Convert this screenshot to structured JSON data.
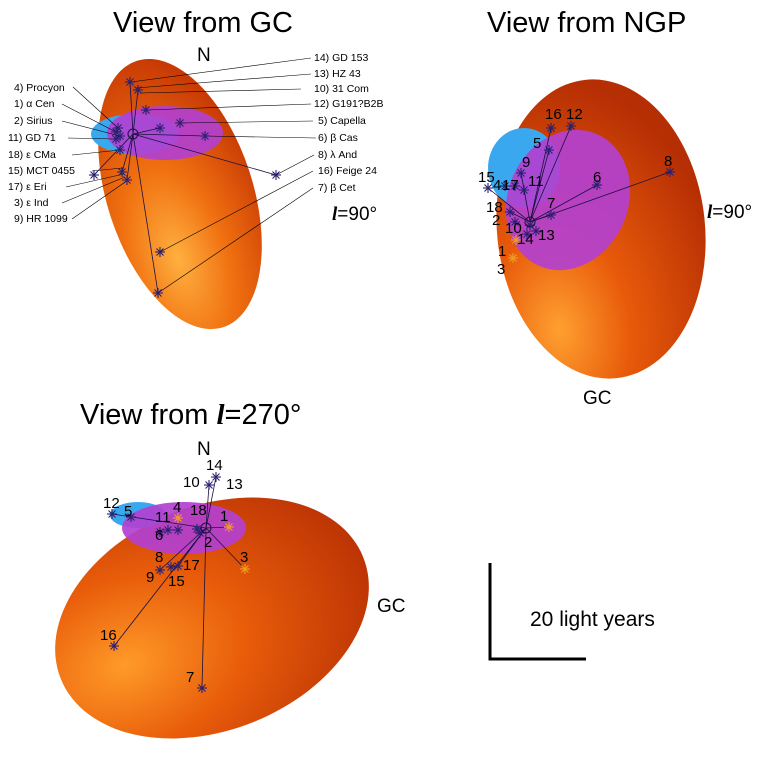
{
  "colors": {
    "bubble_dark": "#c23a05",
    "bubble_mid": "#e8600c",
    "bubble_light": "#ff9a2a",
    "cloud_blue": "#3aa8ee",
    "cloud_magenta": "#b340d0",
    "star_blue": "#2a2070",
    "star_orange": "#f0a020"
  },
  "icons": {
    "star_marker": "asterisk-star-icon",
    "sun_marker": "circle-sun-icon"
  },
  "panels": {
    "gc": {
      "title": "View from GC",
      "north": "N",
      "l_prefix": "l",
      "l_suffix": "=90°",
      "legend_left": [
        "4) Procyon",
        "1) α Cen",
        "2) Sirius",
        "11) GD 71",
        "18) ε CMa",
        "15) MCT 0455",
        "17) ε Eri",
        "3) ε Ind",
        "9) HR 1099"
      ],
      "legend_right": [
        "14) GD 153",
        "13) HZ 43",
        "10) 31 Com",
        "12) G191?B2B",
        "5) Capella",
        "6) β Cas",
        "8) λ And",
        "16) Feige 24",
        "7) β Cet"
      ]
    },
    "ngp": {
      "title": "View from NGP",
      "l_prefix": "l",
      "l_suffix": "=90°",
      "gc_label": "GC",
      "stars": [
        "16",
        "12",
        "5",
        "9",
        "6",
        "8",
        "15",
        "4",
        "17",
        "11",
        "18",
        "2",
        "7",
        "10",
        "14",
        "13",
        "1",
        "3"
      ]
    },
    "l270": {
      "title_prefix": "View from ",
      "title_l": "l",
      "title_suffix": "=270°",
      "north": "N",
      "gc_label": "GC",
      "stars": [
        "14",
        "10",
        "13",
        "12",
        "5",
        "4",
        "18",
        "11",
        "1",
        "6",
        "2",
        "3",
        "8",
        "17",
        "9",
        "15",
        "16",
        "7"
      ]
    }
  },
  "scale_bar": {
    "label": "20 light years"
  }
}
